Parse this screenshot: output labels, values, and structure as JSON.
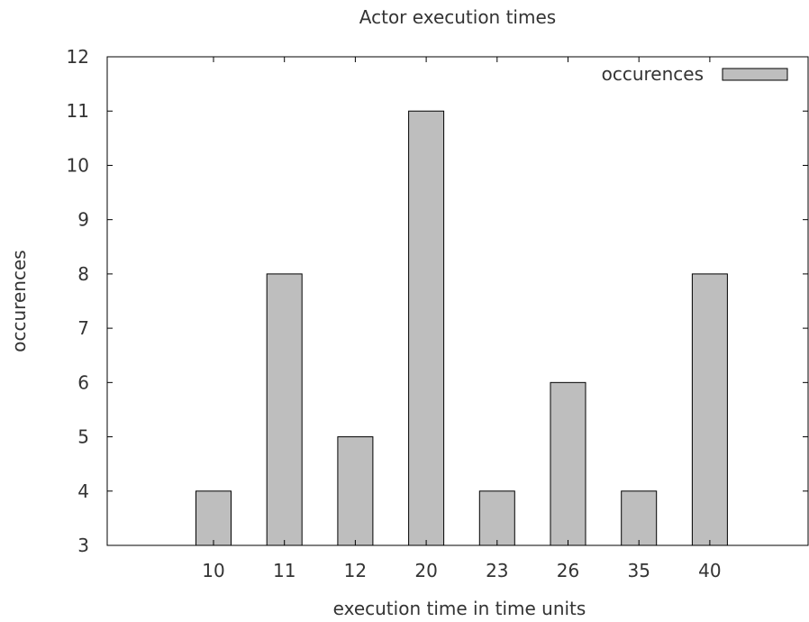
{
  "chart_data": {
    "type": "bar",
    "title": "Actor execution times",
    "xlabel": "execution time in time units",
    "ylabel": "occurences",
    "categories": [
      "10",
      "11",
      "12",
      "20",
      "23",
      "26",
      "35",
      "40"
    ],
    "series": [
      {
        "name": "occurences",
        "values": [
          4,
          8,
          5,
          11,
          4,
          6,
          4,
          8
        ]
      }
    ],
    "ylim": [
      3,
      12
    ],
    "yticks": [
      3,
      4,
      5,
      6,
      7,
      8,
      9,
      10,
      11,
      12
    ],
    "bar_color": "#bebebe",
    "grid": false,
    "legend_position": "top-right"
  }
}
